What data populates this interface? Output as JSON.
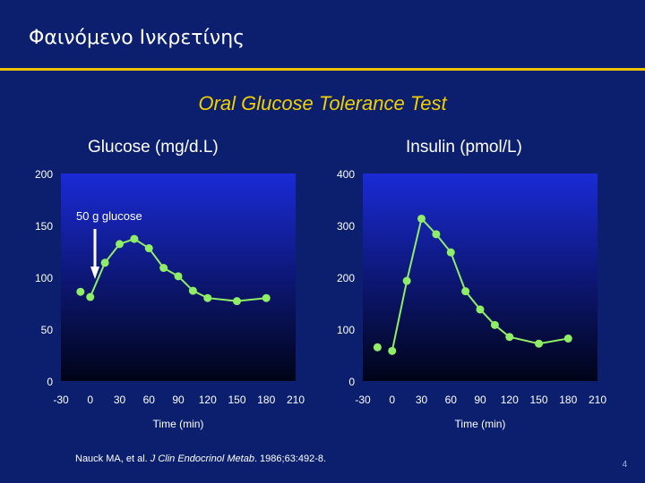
{
  "slide": {
    "title": "Φαινόμενο Ινκρετίνης",
    "subtitle": "Oral Glucose Tolerance Test",
    "citation_authors": "Nauck MA, et al. ",
    "citation_journal": "J Clin Endocrinol Metab",
    "citation_rest": ". 1986;63:492-8.",
    "page_number": "4",
    "colors": {
      "background": "#0b1f6e",
      "title_rule": "#e8c400",
      "subtitle": "#f2d000",
      "plot_gradient_top": "#1a2bd6",
      "plot_gradient_bottom": "#000417",
      "series": "#90ee66"
    }
  },
  "chart_data": [
    {
      "type": "line",
      "title": "Glucose (mg/d.L)",
      "xlabel": "Time (min)",
      "ylabel": "Glucose (mg/d.L)",
      "x_ticks": [
        -30,
        0,
        30,
        60,
        90,
        120,
        150,
        180,
        210
      ],
      "x_tick_labels": [
        "-30",
        "0",
        "30",
        "60",
        "90",
        "120",
        "150",
        "180",
        "210"
      ],
      "y_ticks": [
        0,
        50,
        100,
        150,
        200
      ],
      "y_tick_labels": [
        "0",
        "50",
        "100",
        "150",
        "200"
      ],
      "xlim": [
        -30,
        210
      ],
      "ylim": [
        0,
        200
      ],
      "annotation": "50 g glucose",
      "pre_dose_point": {
        "x": -10,
        "y": 86
      },
      "series": [
        {
          "name": "Glucose",
          "x": [
            0,
            15,
            30,
            45,
            60,
            75,
            90,
            105,
            120,
            150,
            180
          ],
          "y": [
            81,
            114,
            132,
            137,
            128,
            109,
            101,
            87,
            80,
            77,
            80
          ]
        }
      ]
    },
    {
      "type": "line",
      "title": "Insulin (pmol/L)",
      "xlabel": "Time (min)",
      "ylabel": "Insulin (pmol/L)",
      "x_ticks": [
        -30,
        0,
        30,
        60,
        90,
        120,
        150,
        180,
        210
      ],
      "x_tick_labels": [
        "-30",
        "0",
        "30",
        "60",
        "90",
        "120",
        "150",
        "180",
        "210"
      ],
      "y_ticks": [
        0,
        100,
        200,
        300,
        400
      ],
      "y_tick_labels": [
        "0",
        "100",
        "200",
        "300",
        "400"
      ],
      "xlim": [
        -30,
        210
      ],
      "ylim": [
        0,
        400
      ],
      "pre_dose_point": {
        "x": -15,
        "y": 65
      },
      "series": [
        {
          "name": "Insulin",
          "x": [
            0,
            15,
            30,
            45,
            60,
            75,
            90,
            105,
            120,
            150,
            180
          ],
          "y": [
            58,
            193,
            313,
            283,
            248,
            173,
            138,
            108,
            85,
            72,
            82
          ]
        }
      ]
    }
  ]
}
